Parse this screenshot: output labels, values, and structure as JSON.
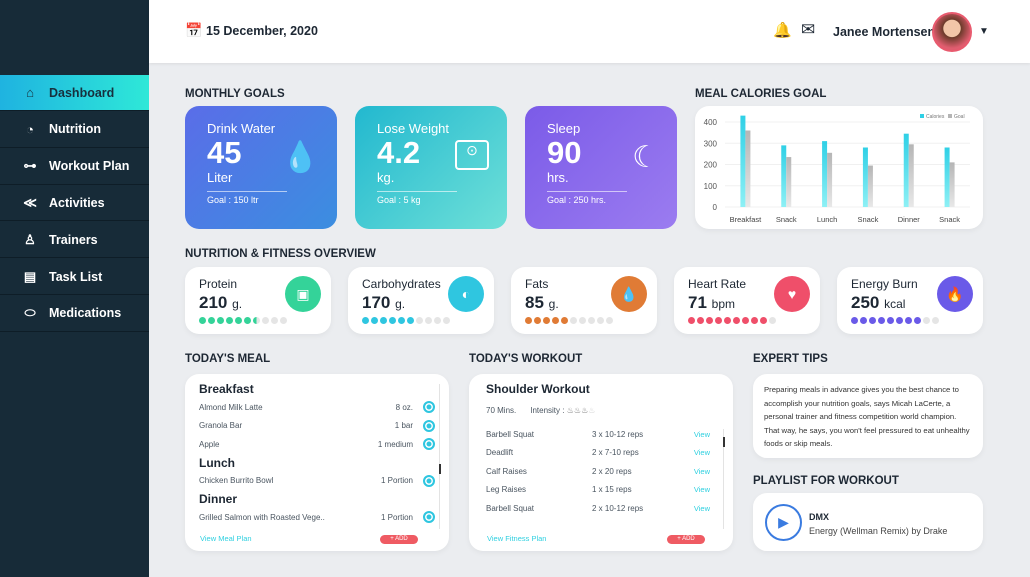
{
  "header": {
    "date": "15 December, 2020",
    "user_name": "Janee Mortensen"
  },
  "sidebar": {
    "items": [
      {
        "label": "Dashboard",
        "icon": "home-icon",
        "active": true
      },
      {
        "label": "Nutrition",
        "icon": "nutrition-icon"
      },
      {
        "label": "Workout Plan",
        "icon": "dumbbell-icon"
      },
      {
        "label": "Activities",
        "icon": "shoe-icon"
      },
      {
        "label": "Trainers",
        "icon": "person-icon"
      },
      {
        "label": "Task List",
        "icon": "clipboard-icon"
      },
      {
        "label": "Medications",
        "icon": "pill-icon"
      }
    ]
  },
  "monthly_goals": {
    "title": "MONTHLY GOALS",
    "cards": [
      {
        "title": "Drink Water",
        "value": "45",
        "unit": "Liter",
        "goal": "Goal : 150 ltr",
        "icon": "water-drop-icon"
      },
      {
        "title": "Lose Weight",
        "value": "4.2",
        "unit": "kg.",
        "goal": "Goal : 5 kg",
        "icon": "scale-icon"
      },
      {
        "title": "Sleep",
        "value": "90",
        "unit": "hrs.",
        "goal": "Goal : 250 hrs.",
        "icon": "moon-icon"
      }
    ]
  },
  "chart_data": {
    "type": "bar",
    "title": "MEAL CALORIES GOAL",
    "categories": [
      "Breakfast",
      "Snack",
      "Lunch",
      "Snack",
      "Dinner",
      "Snack"
    ],
    "series": [
      {
        "name": "Calories",
        "values": [
          430,
          290,
          310,
          280,
          345,
          280
        ],
        "color": "#2fd0e6"
      },
      {
        "name": "Goal",
        "values": [
          360,
          235,
          255,
          195,
          295,
          210
        ],
        "color": "#b5b5b5"
      }
    ],
    "ylim": [
      0,
      400
    ],
    "yticks": [
      0,
      100,
      200,
      300,
      400
    ],
    "legend": "top-right",
    "grid": true
  },
  "overview": {
    "title": "NUTRITION & FITNESS OVERVIEW",
    "cards": [
      {
        "title": "Protein",
        "value": "210",
        "unit": "g.",
        "level": 0.65,
        "color": "#34d399",
        "icon": "protein-jar-icon"
      },
      {
        "title": "Carbohydrates",
        "value": "170",
        "unit": "g.",
        "level": 0.6,
        "color": "#2fc6e0",
        "icon": "bread-icon"
      },
      {
        "title": "Fats",
        "value": "85",
        "unit": "g.",
        "level": 0.5,
        "color": "#e07b35",
        "icon": "fat-drop-icon"
      },
      {
        "title": "Heart Rate",
        "value": "71",
        "unit": "bpm",
        "level": 0.9,
        "color": "#ef4f6a",
        "icon": "heart-pulse-icon"
      },
      {
        "title": "Energy Burn",
        "value": "250",
        "unit": "kcal",
        "level": 0.8,
        "color": "#6a5ae8",
        "icon": "flame-icon"
      }
    ]
  },
  "meal": {
    "title": "TODAY'S MEAL",
    "groups": [
      {
        "name": "Breakfast",
        "items": [
          {
            "name": "Almond Milk Latte",
            "qty": "8 oz."
          },
          {
            "name": "Granola Bar",
            "qty": "1 bar"
          },
          {
            "name": "Apple",
            "qty": "1 medium"
          }
        ]
      },
      {
        "name": "Lunch",
        "items": [
          {
            "name": "Chicken Burrito Bowl",
            "qty": "1 Portion"
          }
        ]
      },
      {
        "name": "Dinner",
        "items": [
          {
            "name": "Grilled Salmon with Roasted Vege..",
            "qty": "1 Portion"
          }
        ]
      }
    ],
    "link": "View Meal Plan",
    "add": "+ ADD"
  },
  "workout": {
    "title": "TODAY'S WORKOUT",
    "name": "Shoulder Workout",
    "duration": "70 Mins.",
    "intensity_label": "Intensity :",
    "intensity": 3,
    "intensity_max": 4,
    "items": [
      {
        "name": "Barbell Squat",
        "reps": "3 x 10-12 reps"
      },
      {
        "name": "Deadlift",
        "reps": "2 x  7-10 reps"
      },
      {
        "name": "Calf Raises",
        "reps": "2 x  20 reps"
      },
      {
        "name": "Leg Raises",
        "reps": "1 x  15 reps"
      },
      {
        "name": "Barbell Squat",
        "reps": "2 x 10-12 reps"
      }
    ],
    "view": "View",
    "link": "View Fitness Plan",
    "add": "+ ADD"
  },
  "tips": {
    "title": "EXPERT TIPS",
    "text": "Preparing meals in advance gives you the best chance to accomplish your nutrition goals, says Micah LaCerte, a personal trainer and fitness competition world champion. That way, he says, you won't feel pressured to eat unhealthy foods or skip meals."
  },
  "playlist": {
    "title": "PLAYLIST FOR WORKOUT",
    "artist": "DMX",
    "track": "Energy (Wellman Remix) by Drake"
  }
}
